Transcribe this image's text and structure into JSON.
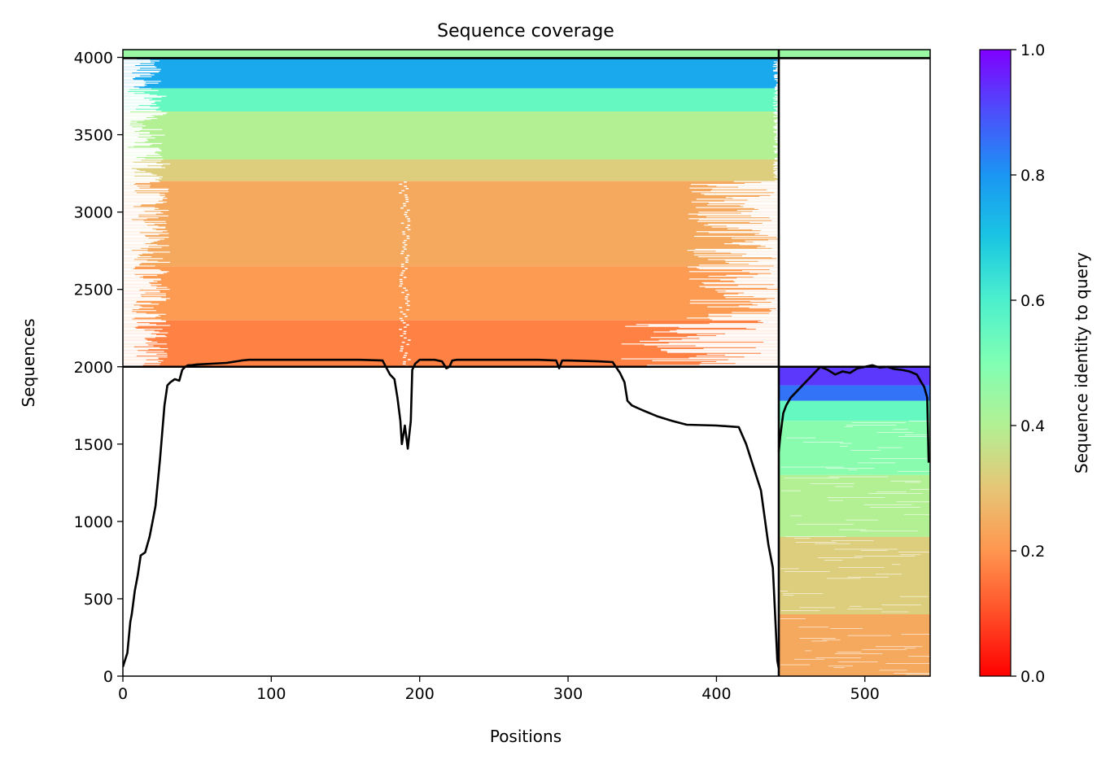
{
  "chart_data": {
    "type": "heatmap",
    "title": "Sequence coverage",
    "xlabel": "Positions",
    "ylabel": "Sequences",
    "xlim": [
      0,
      544
    ],
    "ylim": [
      0,
      4050
    ],
    "xticks": [
      0,
      100,
      200,
      300,
      400,
      500
    ],
    "yticks": [
      0,
      500,
      1000,
      1500,
      2000,
      2500,
      3000,
      3500,
      4000
    ],
    "grid": false,
    "colorbar": {
      "label": "Sequence identity to query",
      "colormap": "rainbow_r",
      "range": [
        0,
        1
      ],
      "ticks": [
        0.0,
        0.2,
        0.4,
        0.6,
        0.8,
        1.0
      ],
      "tick_labels": [
        "0.0",
        "0.2",
        "0.4",
        "0.6",
        "0.8",
        "1.0"
      ]
    },
    "segment_boundaries": {
      "chain_break_position": 442,
      "row_boundaries": [
        2000,
        3995
      ]
    },
    "alignment_blocks": [
      {
        "rows": [
          3995,
          4050
        ],
        "span": [
          0,
          544
        ],
        "identity": 0.45
      },
      {
        "rows": [
          3800,
          3995
        ],
        "span": [
          0,
          442
        ],
        "identity": 0.76
      },
      {
        "rows": [
          3650,
          3800
        ],
        "span": [
          0,
          442
        ],
        "identity": 0.55
      },
      {
        "rows": [
          3340,
          3650
        ],
        "span": [
          0,
          442
        ],
        "identity": 0.4
      },
      {
        "rows": [
          3200,
          3340
        ],
        "span": [
          0,
          442
        ],
        "identity": 0.32
      },
      {
        "rows": [
          2650,
          3200
        ],
        "span": [
          0,
          442
        ],
        "identity": 0.24
      },
      {
        "rows": [
          2300,
          2650
        ],
        "span": [
          0,
          442
        ],
        "identity": 0.21
      },
      {
        "rows": [
          2000,
          2300
        ],
        "span": [
          0,
          442
        ],
        "identity": 0.17
      },
      {
        "rows": [
          1880,
          2000
        ],
        "span": [
          442,
          544
        ],
        "identity": 0.93
      },
      {
        "rows": [
          1780,
          1880
        ],
        "span": [
          442,
          544
        ],
        "identity": 0.85
      },
      {
        "rows": [
          1650,
          1780
        ],
        "span": [
          442,
          544
        ],
        "identity": 0.55
      },
      {
        "rows": [
          1300,
          1650
        ],
        "span": [
          442,
          544
        ],
        "identity": 0.48
      },
      {
        "rows": [
          900,
          1300
        ],
        "span": [
          442,
          544
        ],
        "identity": 0.4
      },
      {
        "rows": [
          400,
          900
        ],
        "span": [
          442,
          544
        ],
        "identity": 0.32
      },
      {
        "rows": [
          0,
          400
        ],
        "span": [
          442,
          544
        ],
        "identity": 0.24
      }
    ],
    "series": [
      {
        "type": "line",
        "color": "#000000",
        "x": [
          0,
          3,
          5,
          6,
          8,
          10,
          12,
          15,
          18,
          20,
          22,
          25,
          28,
          30,
          32,
          35,
          38,
          40,
          42,
          44,
          46,
          50,
          60,
          70,
          80,
          85,
          90,
          100,
          120,
          140,
          160,
          175,
          180,
          183,
          185,
          187,
          188,
          190,
          192,
          194,
          195,
          197,
          200,
          205,
          210,
          215,
          218,
          220,
          222,
          225,
          230,
          250,
          280,
          292,
          294,
          296,
          300,
          320,
          330,
          335,
          338,
          340,
          343,
          350,
          360,
          370,
          380,
          400,
          415,
          420,
          430,
          435,
          438,
          440,
          441,
          442
        ],
        "y": [
          60,
          150,
          350,
          400,
          550,
          650,
          780,
          800,
          900,
          1000,
          1100,
          1400,
          1750,
          1880,
          1900,
          1920,
          1910,
          1980,
          2000,
          2010,
          2010,
          2015,
          2020,
          2025,
          2040,
          2045,
          2045,
          2045,
          2045,
          2045,
          2045,
          2040,
          1950,
          1920,
          1800,
          1650,
          1500,
          1620,
          1470,
          1650,
          1980,
          2020,
          2045,
          2045,
          2045,
          2035,
          1990,
          2000,
          2040,
          2045,
          2045,
          2045,
          2045,
          2040,
          1990,
          2040,
          2040,
          2035,
          2030,
          1960,
          1900,
          1780,
          1750,
          1720,
          1680,
          1650,
          1625,
          1620,
          1610,
          1500,
          1200,
          850,
          700,
          300,
          100,
          50
        ]
      },
      {
        "type": "line",
        "color": "#000000",
        "x": [
          442,
          443,
          445,
          447,
          450,
          455,
          460,
          465,
          470,
          475,
          480,
          485,
          490,
          495,
          500,
          505,
          510,
          515,
          520,
          525,
          530,
          535,
          538,
          540,
          542,
          543
        ],
        "y": [
          1450,
          1550,
          1700,
          1750,
          1800,
          1850,
          1900,
          1950,
          2000,
          1980,
          1950,
          1970,
          1960,
          1990,
          2000,
          2010,
          1995,
          2000,
          1985,
          1980,
          1970,
          1950,
          1900,
          1870,
          1800,
          1380
        ]
      }
    ]
  }
}
